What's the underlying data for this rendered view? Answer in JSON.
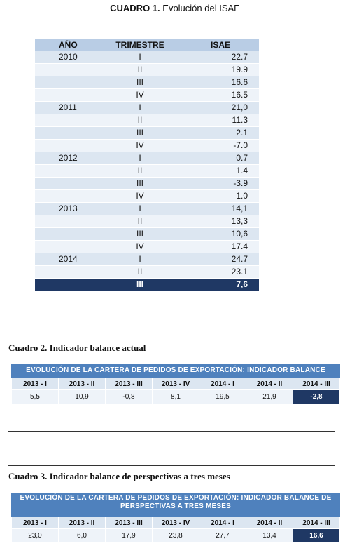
{
  "cuadro1": {
    "title_bold": "CUADRO 1.",
    "title_rest": " Evolución del ISAE",
    "headers": {
      "year": "AÑO",
      "quarter": "TRIMESTRE",
      "value": "ISAE"
    },
    "rows": [
      {
        "year": "2010",
        "quarter": "I",
        "value": "22.7"
      },
      {
        "year": "",
        "quarter": "II",
        "value": "19.9"
      },
      {
        "year": "",
        "quarter": "III",
        "value": "16.6"
      },
      {
        "year": "",
        "quarter": "IV",
        "value": "16.5"
      },
      {
        "year": "2011",
        "quarter": "I",
        "value": "21,0"
      },
      {
        "year": "",
        "quarter": "II",
        "value": "11.3"
      },
      {
        "year": "",
        "quarter": "III",
        "value": "2.1"
      },
      {
        "year": "",
        "quarter": "IV",
        "value": "-7.0"
      },
      {
        "year": "2012",
        "quarter": "I",
        "value": "0.7"
      },
      {
        "year": "",
        "quarter": "II",
        "value": "1.4"
      },
      {
        "year": "",
        "quarter": "III",
        "value": "-3.9"
      },
      {
        "year": "",
        "quarter": "IV",
        "value": "1.0"
      },
      {
        "year": "2013",
        "quarter": "I",
        "value": "14,1"
      },
      {
        "year": "",
        "quarter": "II",
        "value": "13,3"
      },
      {
        "year": "",
        "quarter": "III",
        "value": "10,6"
      },
      {
        "year": "",
        "quarter": "IV",
        "value": "17.4"
      },
      {
        "year": "2014",
        "quarter": "I",
        "value": "24.7"
      },
      {
        "year": "",
        "quarter": "II",
        "value": "23.1"
      },
      {
        "year": "",
        "quarter": "III",
        "value": "7,6"
      }
    ]
  },
  "cuadro2": {
    "title": "Cuadro 2. Indicador balance actual",
    "band": "EVOLUCIÓN DE LA CARTERA DE PEDIDOS DE EXPORTACIÓN: INDICADOR BALANCE ACTUAL",
    "periods": [
      "2013 - I",
      "2013 - II",
      "2013 - III",
      "2013 - IV",
      "2014 - I",
      "2014 - II",
      "2014 - III"
    ],
    "values": [
      "5,5",
      "10,9",
      "-0,8",
      "8,1",
      "19,5",
      "21,9",
      "-2,8"
    ]
  },
  "cuadro3": {
    "title": "Cuadro 3. Indicador balance de perspectivas a tres meses",
    "band_line1": "EVOLUCIÓN DE LA CARTERA DE PEDIDOS DE EXPORTACIÓN: INDICADOR BALANCE DE",
    "band_line2": "PERSPECTIVAS A TRES MESES",
    "periods": [
      "2013 - I",
      "2013 - II",
      "2013 - III",
      "2013 - IV",
      "2014 - I",
      "2014 - II",
      "2014 - III"
    ],
    "values": [
      "23,0",
      "6,0",
      "17,9",
      "23,8",
      "27,7",
      "13,4",
      "16,6"
    ]
  },
  "colors": {
    "header_band": "#4f81bd",
    "highlight": "#1f3864",
    "row_light": "#dce6f1",
    "row_pale": "#eef3f9"
  }
}
